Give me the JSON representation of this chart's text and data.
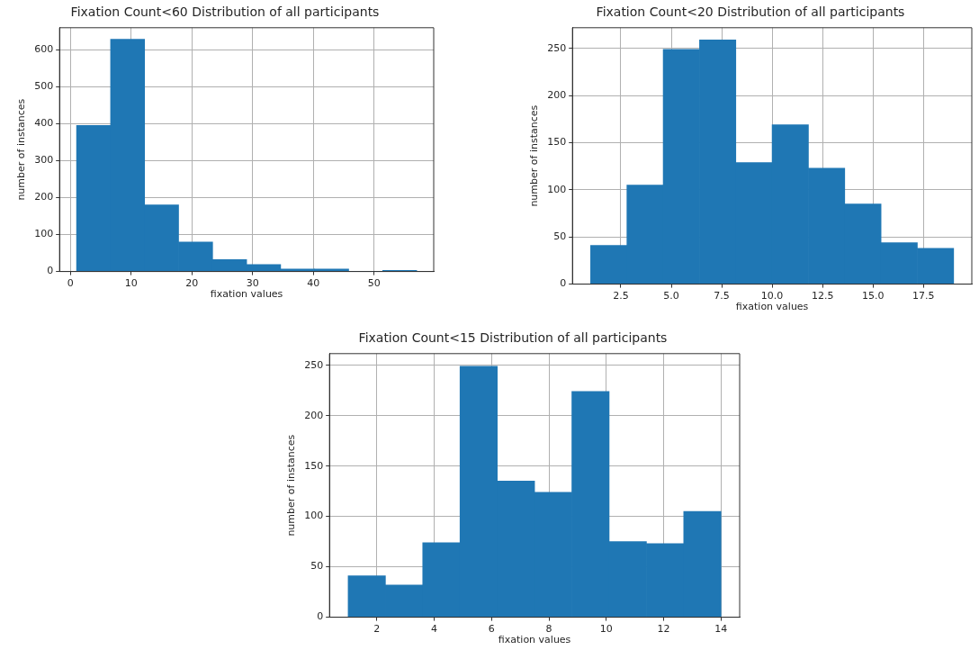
{
  "chart_data": [
    {
      "type": "histogram",
      "title": "Fixation Count<60 Distribution of all participants",
      "xlabel": "fixation values",
      "ylabel": "number of instances",
      "bins": [
        1,
        6.6,
        12.2,
        17.8,
        23.4,
        29,
        34.6,
        40.2,
        45.8,
        51.4,
        57
      ],
      "values": [
        395,
        628,
        180,
        80,
        32,
        19,
        7,
        7,
        0,
        3
      ],
      "color": "#1f77b4",
      "xlim": [
        -1.8,
        59.8
      ],
      "xticks": [
        0,
        10,
        20,
        30,
        40,
        50
      ],
      "ylim": [
        0,
        659
      ],
      "yticks": [
        0,
        100,
        200,
        300,
        400,
        500,
        600
      ],
      "grid": true
    },
    {
      "type": "histogram",
      "title": "Fixation Count<20 Distribution of all participants",
      "xlabel": "fixation values",
      "ylabel": "number of instances",
      "bins": [
        1,
        2.8,
        4.6,
        6.4,
        8.2,
        10,
        11.8,
        13.6,
        15.4,
        17.2,
        19
      ],
      "values": [
        41,
        105,
        249,
        259,
        129,
        169,
        123,
        85,
        44,
        38
      ],
      "color": "#1f77b4",
      "xlim": [
        0.1,
        19.9
      ],
      "xticks": [
        2.5,
        {
          "value": 5,
          "label": "5.0"
        },
        7.5,
        {
          "value": 10,
          "label": "10.0"
        },
        12.5,
        {
          "value": 15,
          "label": "15.0"
        },
        17.5
      ],
      "ylim": [
        0,
        272
      ],
      "yticks": [
        0,
        50,
        100,
        150,
        200,
        250
      ],
      "grid": true
    },
    {
      "type": "histogram",
      "title": "Fixation Count<15 Distribution of all participants",
      "xlabel": "fixation values",
      "ylabel": "number of instances",
      "bins": [
        1,
        2.3,
        3.6,
        4.9,
        6.2,
        7.5,
        8.8,
        10.1,
        11.4,
        12.7,
        14
      ],
      "values": [
        41,
        32,
        74,
        249,
        135,
        124,
        224,
        75,
        73,
        105
      ],
      "color": "#1f77b4",
      "xlim": [
        0.35,
        14.65
      ],
      "xticks": [
        2,
        4,
        6,
        8,
        10,
        12,
        14
      ],
      "ylim": [
        0,
        261.5
      ],
      "yticks": [
        0,
        50,
        100,
        150,
        200,
        250
      ],
      "grid": true
    }
  ]
}
